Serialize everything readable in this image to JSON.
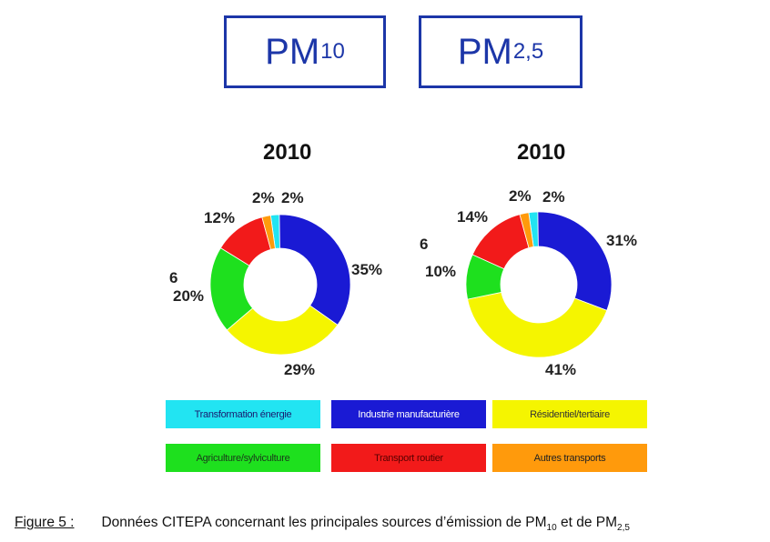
{
  "boxes": {
    "left": {
      "base": "PM",
      "sub": "10"
    },
    "right": {
      "base": "PM",
      "sub": "2,5"
    }
  },
  "colors": {
    "transformation_energie": "#22e4f2",
    "industrie": "#1a1ad4",
    "residentiel": "#f5f500",
    "agriculture": "#1ee01e",
    "transport_routier": "#f21a1a",
    "autres_transports": "#ff9a0c",
    "box_border": "#1c36a8"
  },
  "chart_data": [
    {
      "type": "pie",
      "title": "2010",
      "labels": [
        "Transformation énergie",
        "Industrie manufacturière",
        "Résidentiel/tertiaire",
        "Agriculture/sylviculture",
        "Transport routier",
        "Autres transports"
      ],
      "values": [
        2,
        35,
        29,
        20,
        12,
        2
      ],
      "value_labels": [
        "2%",
        "35%",
        "29%",
        "20%",
        "12%",
        "2%"
      ],
      "colors": [
        "#22e4f2",
        "#1a1ad4",
        "#f5f500",
        "#1ee01e",
        "#f21a1a",
        "#ff9a0c"
      ]
    },
    {
      "type": "pie",
      "title": "2010",
      "labels": [
        "Transformation énergie",
        "Industrie manufacturière",
        "Résidentiel/tertiaire",
        "Agriculture/sylviculture",
        "Transport routier",
        "Autres transports"
      ],
      "values": [
        2,
        31,
        41,
        10,
        14,
        2
      ],
      "value_labels": [
        "2%",
        "31%",
        "41%",
        "10%",
        "14%",
        "2%"
      ],
      "colors": [
        "#22e4f2",
        "#1a1ad4",
        "#f5f500",
        "#1ee01e",
        "#f21a1a",
        "#ff9a0c"
      ]
    }
  ],
  "stray_labels": {
    "left": "6",
    "right": "6"
  },
  "legend": [
    {
      "label": "Transformation énergie",
      "color": "#22e4f2",
      "text_color": "#1a1a6e"
    },
    {
      "label": "Industrie manufacturière",
      "color": "#1a1ad4",
      "text_color": "#ffffff"
    },
    {
      "label": "Résidentiel/tertiaire",
      "color": "#f5f500",
      "text_color": "#333333"
    },
    {
      "label": "Agriculture/sylviculture",
      "color": "#1ee01e",
      "text_color": "#1a3a1a"
    },
    {
      "label": "Transport routier",
      "color": "#f21a1a",
      "text_color": "#5a0000"
    },
    {
      "label": "Autres transports",
      "color": "#ff9a0c",
      "text_color": "#222222"
    }
  ],
  "caption": {
    "figure": "Figure 5 :",
    "text_before": "Données CITEPA concernant les principales sources d’émission de PM",
    "sub1": "10",
    "text_middle": " et de PM",
    "sub2": "2,5"
  }
}
